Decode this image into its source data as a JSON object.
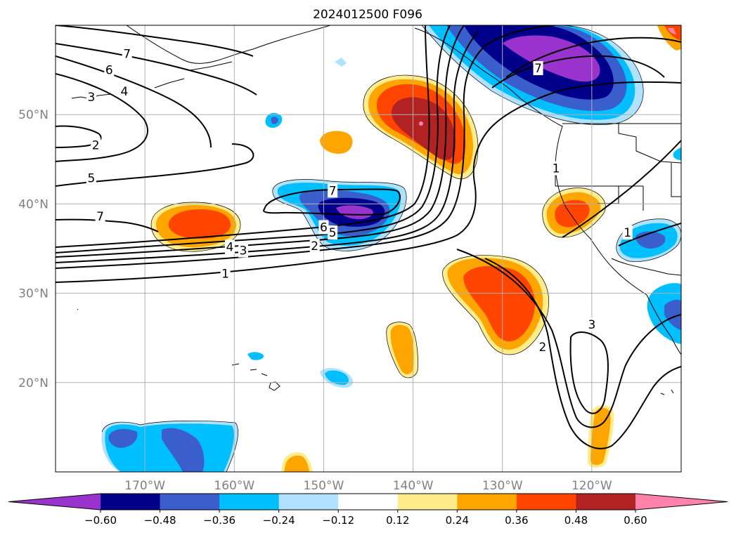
{
  "title": "2024012500 F096",
  "map": {
    "lon_range": [
      -180,
      -110
    ],
    "lat_range": [
      10,
      60
    ],
    "lon_ticks": [
      {
        "value": -170,
        "label": "170°W"
      },
      {
        "value": -160,
        "label": "160°W"
      },
      {
        "value": -150,
        "label": "150°W"
      },
      {
        "value": -140,
        "label": "140°W"
      },
      {
        "value": -130,
        "label": "130°W"
      },
      {
        "value": -120,
        "label": "120°W"
      }
    ],
    "lat_ticks": [
      {
        "value": 50,
        "label": "50°N"
      },
      {
        "value": 40,
        "label": "40°N"
      },
      {
        "value": 30,
        "label": "30°N"
      },
      {
        "value": 20,
        "label": "20°N"
      }
    ],
    "grid": true
  },
  "colorbar": {
    "extend": "both",
    "colors": [
      "#9a32cd",
      "#00008b",
      "#3a5fcd",
      "#00bfff",
      "#b0e2ff",
      "#ffffff",
      "#ffec8b",
      "#ffa500",
      "#ff4500",
      "#b22222",
      "#ff82ab"
    ],
    "ticks": [
      "−0.60",
      "−0.48",
      "−0.36",
      "−0.24",
      "−0.12",
      "0.12",
      "0.24",
      "0.36",
      "0.48",
      "0.60"
    ]
  },
  "contour_labels": [
    {
      "text": "7",
      "lon": -172,
      "lat": 56.8
    },
    {
      "text": "6",
      "lon": -174,
      "lat": 55.0
    },
    {
      "text": "4",
      "lon": -172.3,
      "lat": 52.6
    },
    {
      "text": "3",
      "lon": -176,
      "lat": 52.0
    },
    {
      "text": "2",
      "lon": -175.5,
      "lat": 46.6
    },
    {
      "text": "5",
      "lon": -176.0,
      "lat": 42.9
    },
    {
      "text": "7",
      "lon": -175.0,
      "lat": 38.6
    },
    {
      "text": "7",
      "lon": -149.0,
      "lat": 41.5
    },
    {
      "text": "6",
      "lon": -150.0,
      "lat": 37.4
    },
    {
      "text": "5",
      "lon": -149.0,
      "lat": 36.8
    },
    {
      "text": "4",
      "lon": -160.5,
      "lat": 35.2
    },
    {
      "text": "3",
      "lon": -159.0,
      "lat": 34.8
    },
    {
      "text": "2",
      "lon": -151.0,
      "lat": 35.3
    },
    {
      "text": "1",
      "lon": -161.0,
      "lat": 32.2
    },
    {
      "text": "7",
      "lon": -126.0,
      "lat": 55.2
    },
    {
      "text": "1",
      "lon": -124.0,
      "lat": 44.0
    },
    {
      "text": "1",
      "lon": -116.0,
      "lat": 36.8
    },
    {
      "text": "2",
      "lon": -125.5,
      "lat": 24.0
    },
    {
      "text": "3",
      "lon": -120.0,
      "lat": 26.5
    }
  ]
}
